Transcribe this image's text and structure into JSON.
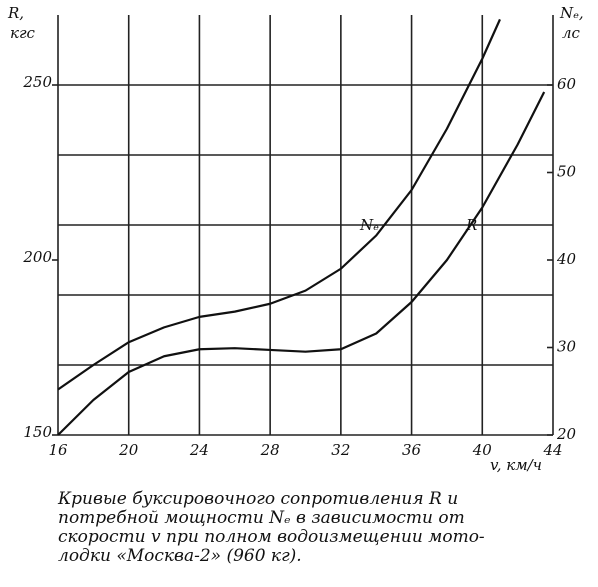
{
  "chart_data": {
    "type": "line",
    "y_label": [
      "R,",
      "кгс"
    ],
    "y2_label": [
      "Nₑ,",
      "лс"
    ],
    "x_label": "v, км/ч",
    "xlim": [
      16,
      44
    ],
    "xticks": [
      16,
      20,
      24,
      28,
      32,
      36,
      40,
      44
    ],
    "ylim": [
      150,
      270
    ],
    "yticks": [
      150,
      200,
      250
    ],
    "ygrid": [
      170,
      190,
      210,
      230,
      250
    ],
    "y2lim": [
      20,
      68
    ],
    "y2ticks": [
      20,
      30,
      40,
      50,
      60
    ],
    "grid": true,
    "series": [
      {
        "name": "Nₑ",
        "color": "#111",
        "axis": "y2",
        "x": [
          16,
          18,
          20,
          22,
          24,
          26,
          28,
          30,
          32,
          34,
          36,
          38,
          40,
          41
        ],
        "values": [
          25.2,
          28,
          30.6,
          32.3,
          33.5,
          34.1,
          35,
          36.5,
          39,
          42.8,
          48,
          55,
          63,
          67.5
        ]
      },
      {
        "name": "R",
        "color": "#111",
        "x": [
          16,
          18,
          20,
          22,
          24,
          26,
          28,
          30,
          32,
          34,
          36,
          38,
          40,
          42,
          43.5
        ],
        "values": [
          150,
          160,
          168,
          172.5,
          174.5,
          174.8,
          174.3,
          173.8,
          174.5,
          179,
          188,
          200,
          215,
          233,
          248
        ]
      }
    ],
    "caption": [
      "Кривые буксировочного сопротивления R и",
      "потребной мощности Nₑ в зависимости от",
      "скорости v при полном водоизмещении мото-",
      "лодки «Москва-2» (960 кг)."
    ]
  }
}
